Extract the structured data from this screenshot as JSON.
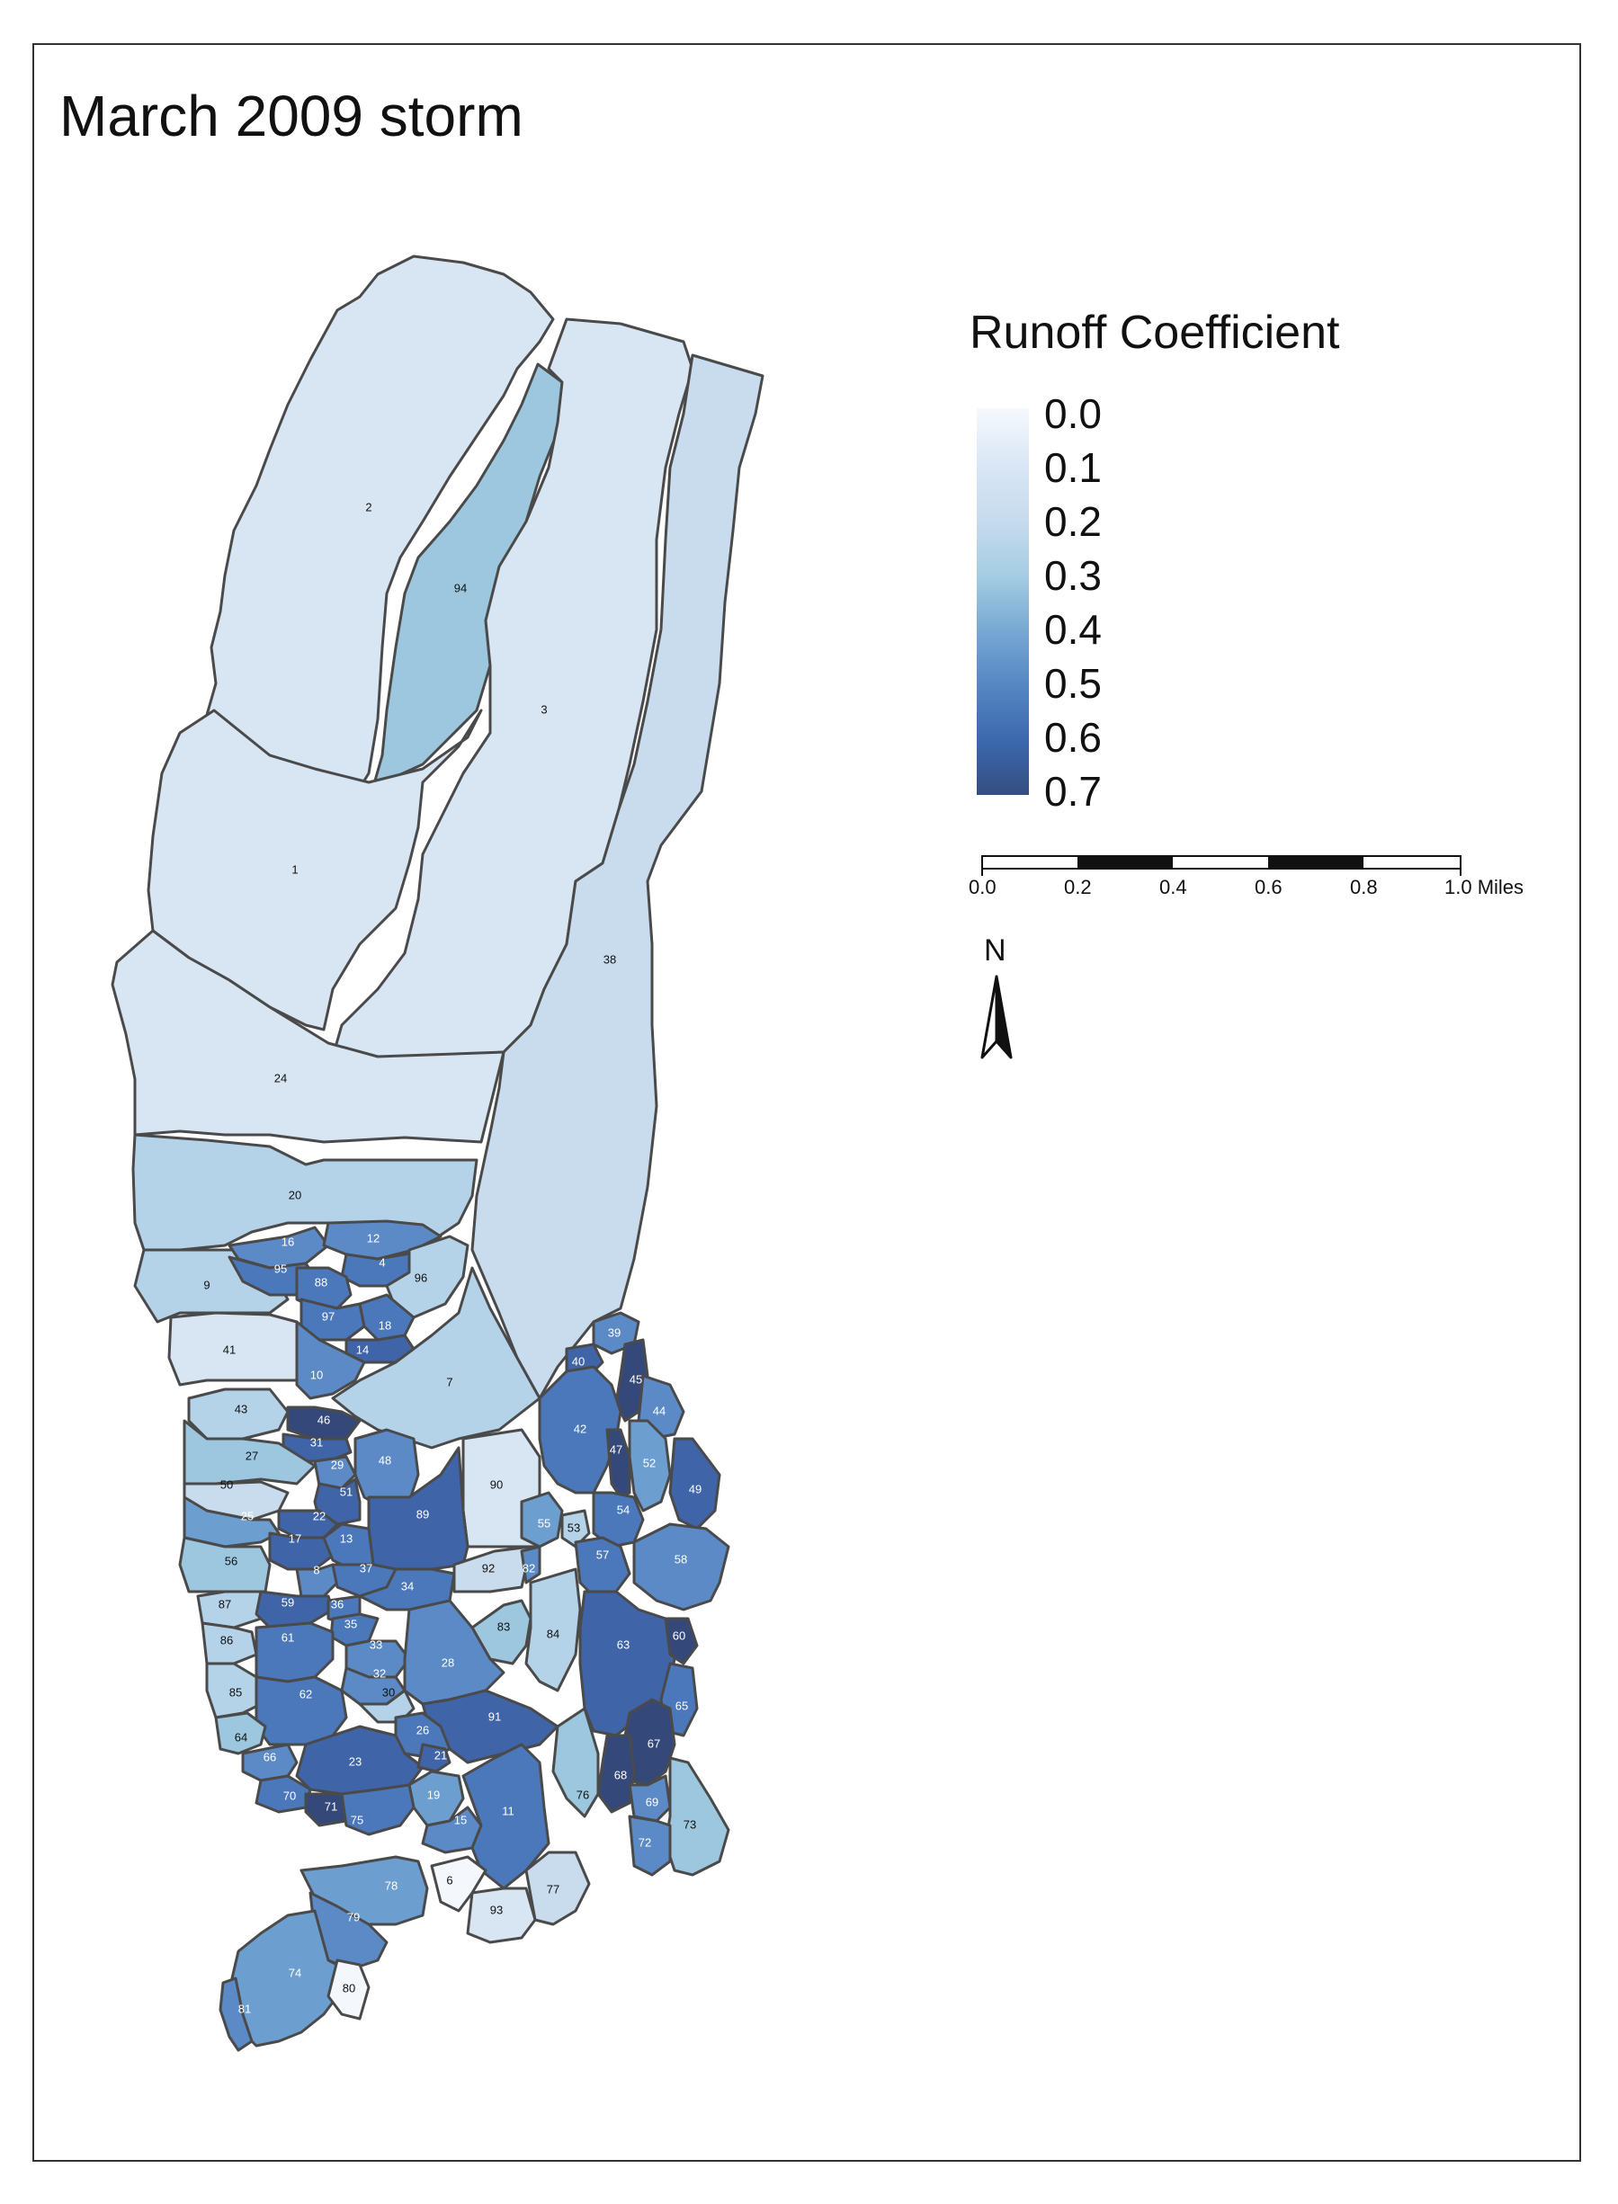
{
  "title": "March 2009 storm",
  "legend": {
    "title": "Runoff Coefficient",
    "ticks": [
      "0.0",
      "0.1",
      "0.2",
      "0.3",
      "0.4",
      "0.5",
      "0.6",
      "0.7"
    ]
  },
  "scale_bar": {
    "labels": [
      "0.0",
      "0.2",
      "0.4",
      "0.6",
      "0.8",
      "1.0 Miles"
    ]
  },
  "north_arrow": {
    "label": "N"
  },
  "colors": {
    "c00": "#f4f7fb",
    "c15": "#d8e5f3",
    "c20": "#c9dcee",
    "c25": "#b5d3e8",
    "c30": "#9cc7df",
    "c45": "#6c9fd0",
    "c50": "#5b8ac6",
    "c55": "#4a78bb",
    "c60": "#3f64a8",
    "c70": "#34497a"
  },
  "subbasins": [
    {
      "id": "2",
      "value": 0.15
    },
    {
      "id": "94",
      "value": 0.3
    },
    {
      "id": "3",
      "value": 0.15
    },
    {
      "id": "38",
      "value": 0.2
    },
    {
      "id": "1",
      "value": 0.15
    },
    {
      "id": "24",
      "value": 0.15
    },
    {
      "id": "20",
      "value": 0.25
    },
    {
      "id": "9",
      "value": 0.25
    },
    {
      "id": "41",
      "value": 0.15
    },
    {
      "id": "16",
      "value": 0.5
    },
    {
      "id": "12",
      "value": 0.5
    },
    {
      "id": "95",
      "value": 0.55
    },
    {
      "id": "4",
      "value": 0.55
    },
    {
      "id": "96",
      "value": 0.25
    },
    {
      "id": "88",
      "value": 0.55
    },
    {
      "id": "97",
      "value": 0.55
    },
    {
      "id": "18",
      "value": 0.55
    },
    {
      "id": "14",
      "value": 0.6
    },
    {
      "id": "10",
      "value": 0.5
    },
    {
      "id": "7",
      "value": 0.25
    },
    {
      "id": "39",
      "value": 0.5
    },
    {
      "id": "40",
      "value": 0.6
    },
    {
      "id": "45",
      "value": 0.7
    },
    {
      "id": "44",
      "value": 0.5
    },
    {
      "id": "42",
      "value": 0.55
    },
    {
      "id": "47",
      "value": 0.7
    },
    {
      "id": "52",
      "value": 0.45
    },
    {
      "id": "49",
      "value": 0.6
    },
    {
      "id": "43",
      "value": 0.25
    },
    {
      "id": "46",
      "value": 0.7
    },
    {
      "id": "31",
      "value": 0.6
    },
    {
      "id": "27",
      "value": 0.3
    },
    {
      "id": "29",
      "value": 0.5
    },
    {
      "id": "48",
      "value": 0.5
    },
    {
      "id": "90",
      "value": 0.15
    },
    {
      "id": "50",
      "value": 0.2
    },
    {
      "id": "51",
      "value": 0.6
    },
    {
      "id": "89",
      "value": 0.6
    },
    {
      "id": "25",
      "value": 0.45
    },
    {
      "id": "22",
      "value": 0.6
    },
    {
      "id": "55",
      "value": 0.45
    },
    {
      "id": "53",
      "value": 0.25
    },
    {
      "id": "54",
      "value": 0.55
    },
    {
      "id": "17",
      "value": 0.6
    },
    {
      "id": "13",
      "value": 0.55
    },
    {
      "id": "57",
      "value": 0.55
    },
    {
      "id": "58",
      "value": 0.5
    },
    {
      "id": "56",
      "value": 0.3
    },
    {
      "id": "8",
      "value": 0.5
    },
    {
      "id": "37",
      "value": 0.55
    },
    {
      "id": "92",
      "value": 0.2
    },
    {
      "id": "82",
      "value": 0.5
    },
    {
      "id": "34",
      "value": 0.55
    },
    {
      "id": "87",
      "value": 0.25
    },
    {
      "id": "59",
      "value": 0.6
    },
    {
      "id": "36",
      "value": 0.55
    },
    {
      "id": "35",
      "value": 0.55
    },
    {
      "id": "83",
      "value": 0.3
    },
    {
      "id": "84",
      "value": 0.25
    },
    {
      "id": "63",
      "value": 0.6
    },
    {
      "id": "60",
      "value": 0.7
    },
    {
      "id": "86",
      "value": 0.25
    },
    {
      "id": "61",
      "value": 0.55
    },
    {
      "id": "33",
      "value": 0.5
    },
    {
      "id": "28",
      "value": 0.5
    },
    {
      "id": "32",
      "value": 0.5
    },
    {
      "id": "85",
      "value": 0.25
    },
    {
      "id": "62",
      "value": 0.55
    },
    {
      "id": "30",
      "value": 0.25
    },
    {
      "id": "65",
      "value": 0.55
    },
    {
      "id": "91",
      "value": 0.6
    },
    {
      "id": "26",
      "value": 0.55
    },
    {
      "id": "67",
      "value": 0.7
    },
    {
      "id": "64",
      "value": 0.3
    },
    {
      "id": "66",
      "value": 0.5
    },
    {
      "id": "23",
      "value": 0.6
    },
    {
      "id": "21",
      "value": 0.6
    },
    {
      "id": "68",
      "value": 0.7
    },
    {
      "id": "70",
      "value": 0.55
    },
    {
      "id": "19",
      "value": 0.45
    },
    {
      "id": "76",
      "value": 0.3
    },
    {
      "id": "69",
      "value": 0.5
    },
    {
      "id": "73",
      "value": 0.3
    },
    {
      "id": "71",
      "value": 0.7
    },
    {
      "id": "75",
      "value": 0.55
    },
    {
      "id": "15",
      "value": 0.5
    },
    {
      "id": "11",
      "value": 0.55
    },
    {
      "id": "72",
      "value": 0.5
    },
    {
      "id": "78",
      "value": 0.45
    },
    {
      "id": "6",
      "value": 0.0
    },
    {
      "id": "93",
      "value": 0.15
    },
    {
      "id": "77",
      "value": 0.2
    },
    {
      "id": "79",
      "value": 0.5
    },
    {
      "id": "74",
      "value": 0.45
    },
    {
      "id": "80",
      "value": 0.0
    },
    {
      "id": "81",
      "value": 0.5
    }
  ]
}
